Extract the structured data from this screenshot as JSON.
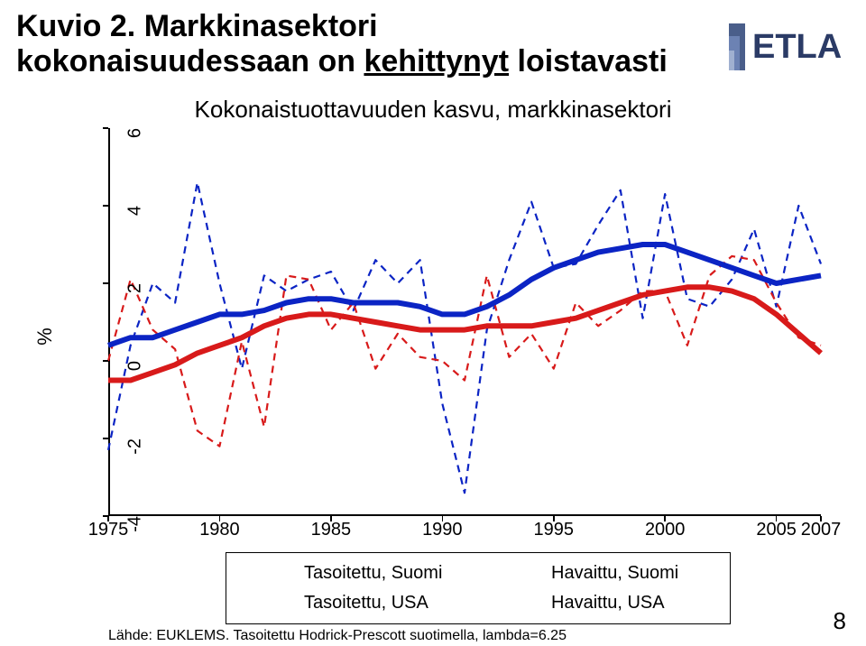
{
  "title": {
    "prefix": "Kuvio 2. ",
    "rest1": "Markkinasektori",
    "line2_a": "kokonaisuudessaan on ",
    "line2_b": "kehittynyt",
    "line2_c": " loistavasti"
  },
  "logo": {
    "text": "ETLA",
    "stripe_colors": [
      "#4a5e8a",
      "#6c82b3",
      "#a0b0d0"
    ],
    "text_color": "#2b3b66"
  },
  "page_number": "8",
  "chart": {
    "title": "Kokonaistuottavuuden kasvu, markkinasektori",
    "background_color": "#ffffff",
    "axis_color": "#000000",
    "x": {
      "min": 1975,
      "max": 2007,
      "ticks": [
        1975,
        1980,
        1985,
        1990,
        1995,
        2000,
        2005,
        2007
      ]
    },
    "y": {
      "label": "%",
      "min": -4,
      "max": 6,
      "ticks": [
        -4,
        -2,
        0,
        2,
        4,
        6
      ],
      "label_fontsize": 22
    },
    "series": {
      "tasoitettu_suomi": {
        "label": "Tasoitettu, Suomi",
        "color": "#0b24c4",
        "width": 6,
        "dash": "none",
        "x": [
          1975,
          1976,
          1977,
          1978,
          1979,
          1980,
          1981,
          1982,
          1983,
          1984,
          1985,
          1986,
          1987,
          1988,
          1989,
          1990,
          1991,
          1992,
          1993,
          1994,
          1995,
          1996,
          1997,
          1998,
          1999,
          2000,
          2001,
          2002,
          2003,
          2004,
          2005,
          2006,
          2007
        ],
        "y": [
          0.4,
          0.6,
          0.6,
          0.8,
          1.0,
          1.2,
          1.2,
          1.3,
          1.5,
          1.6,
          1.6,
          1.5,
          1.5,
          1.5,
          1.4,
          1.2,
          1.2,
          1.4,
          1.7,
          2.1,
          2.4,
          2.6,
          2.8,
          2.9,
          3.0,
          3.0,
          2.8,
          2.6,
          2.4,
          2.2,
          2.0,
          2.1,
          2.2
        ]
      },
      "tasoitettu_usa": {
        "label": "Tasoitettu, USA",
        "color": "#d81a1a",
        "width": 6,
        "dash": "none",
        "x": [
          1975,
          1976,
          1977,
          1978,
          1979,
          1980,
          1981,
          1982,
          1983,
          1984,
          1985,
          1986,
          1987,
          1988,
          1989,
          1990,
          1991,
          1992,
          1993,
          1994,
          1995,
          1996,
          1997,
          1998,
          1999,
          2000,
          2001,
          2002,
          2003,
          2004,
          2005,
          2006,
          2007
        ],
        "y": [
          -0.5,
          -0.5,
          -0.3,
          -0.1,
          0.2,
          0.4,
          0.6,
          0.9,
          1.1,
          1.2,
          1.2,
          1.1,
          1.0,
          0.9,
          0.8,
          0.8,
          0.8,
          0.9,
          0.9,
          0.9,
          1.0,
          1.1,
          1.3,
          1.5,
          1.7,
          1.8,
          1.9,
          1.9,
          1.8,
          1.6,
          1.2,
          0.7,
          0.2
        ]
      },
      "havaittu_suomi": {
        "label": "Havaittu, Suomi",
        "color": "#0b24c4",
        "width": 2.2,
        "dash": "8 6",
        "x": [
          1975,
          1976,
          1977,
          1978,
          1979,
          1980,
          1981,
          1982,
          1983,
          1984,
          1985,
          1986,
          1987,
          1988,
          1989,
          1990,
          1991,
          1992,
          1993,
          1994,
          1995,
          1996,
          1997,
          1998,
          1999,
          2000,
          2001,
          2002,
          2003,
          2004,
          2005,
          2006,
          2007
        ],
        "y": [
          -2.3,
          0.4,
          2.0,
          1.5,
          4.6,
          2.0,
          -0.2,
          2.2,
          1.8,
          2.1,
          2.3,
          1.3,
          2.6,
          2.0,
          2.6,
          -1.1,
          -3.4,
          0.8,
          2.6,
          4.1,
          2.4,
          2.5,
          3.5,
          4.4,
          1.1,
          4.3,
          1.6,
          1.4,
          2.1,
          3.4,
          1.4,
          4.0,
          2.5
        ]
      },
      "havaittu_usa": {
        "label": "Havaittu, USA",
        "color": "#d81a1a",
        "width": 2.2,
        "dash": "8 6",
        "x": [
          1975,
          1976,
          1977,
          1978,
          1979,
          1980,
          1981,
          1982,
          1983,
          1984,
          1985,
          1986,
          1987,
          1988,
          1989,
          1990,
          1991,
          1992,
          1993,
          1994,
          1995,
          1996,
          1997,
          1998,
          1999,
          2000,
          2001,
          2002,
          2003,
          2004,
          2005,
          2006,
          2007
        ],
        "y": [
          0.0,
          2.1,
          0.8,
          0.3,
          -1.8,
          -2.2,
          0.5,
          -1.7,
          2.2,
          2.1,
          0.8,
          1.5,
          -0.2,
          0.7,
          0.1,
          0.0,
          -0.5,
          2.2,
          0.1,
          0.7,
          -0.2,
          1.5,
          0.9,
          1.3,
          1.8,
          1.8,
          0.4,
          2.2,
          2.7,
          2.6,
          1.5,
          0.6,
          0.4
        ]
      }
    },
    "source": "Lähde: EUKLEMS. Tasoitettu Hodrick-Prescott suotimella, lambda=6.25"
  }
}
